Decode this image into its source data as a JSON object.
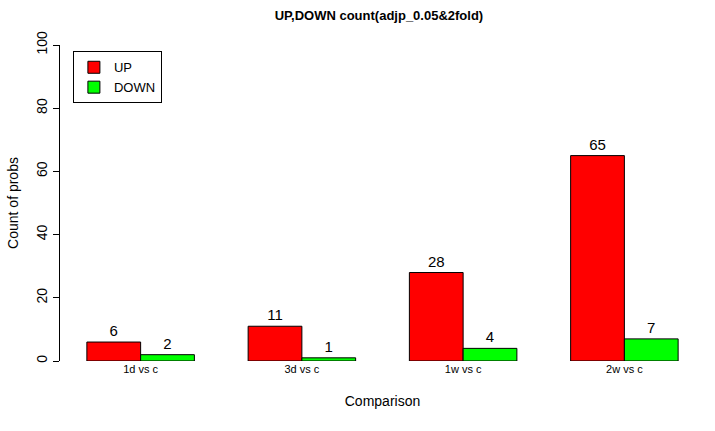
{
  "chart_data": {
    "type": "bar",
    "title": "UP,DOWN count(adjp_0.05&2fold)",
    "x_label": "Comparison",
    "y_label": "Count of probs",
    "categories": [
      "1d vs c",
      "3d vs c",
      "1w vs c",
      "2w vs c"
    ],
    "series": [
      {
        "name": "UP",
        "color": "#ff0000",
        "values": [
          6,
          11,
          28,
          65
        ]
      },
      {
        "name": "DOWN",
        "color": "#00ff00",
        "values": [
          2,
          1,
          4,
          7
        ]
      }
    ],
    "ylim": [
      0,
      100
    ],
    "yticks": [
      0,
      20,
      40,
      60,
      80,
      100
    ],
    "grid": false,
    "legend": "top-left",
    "data_labels": true
  }
}
